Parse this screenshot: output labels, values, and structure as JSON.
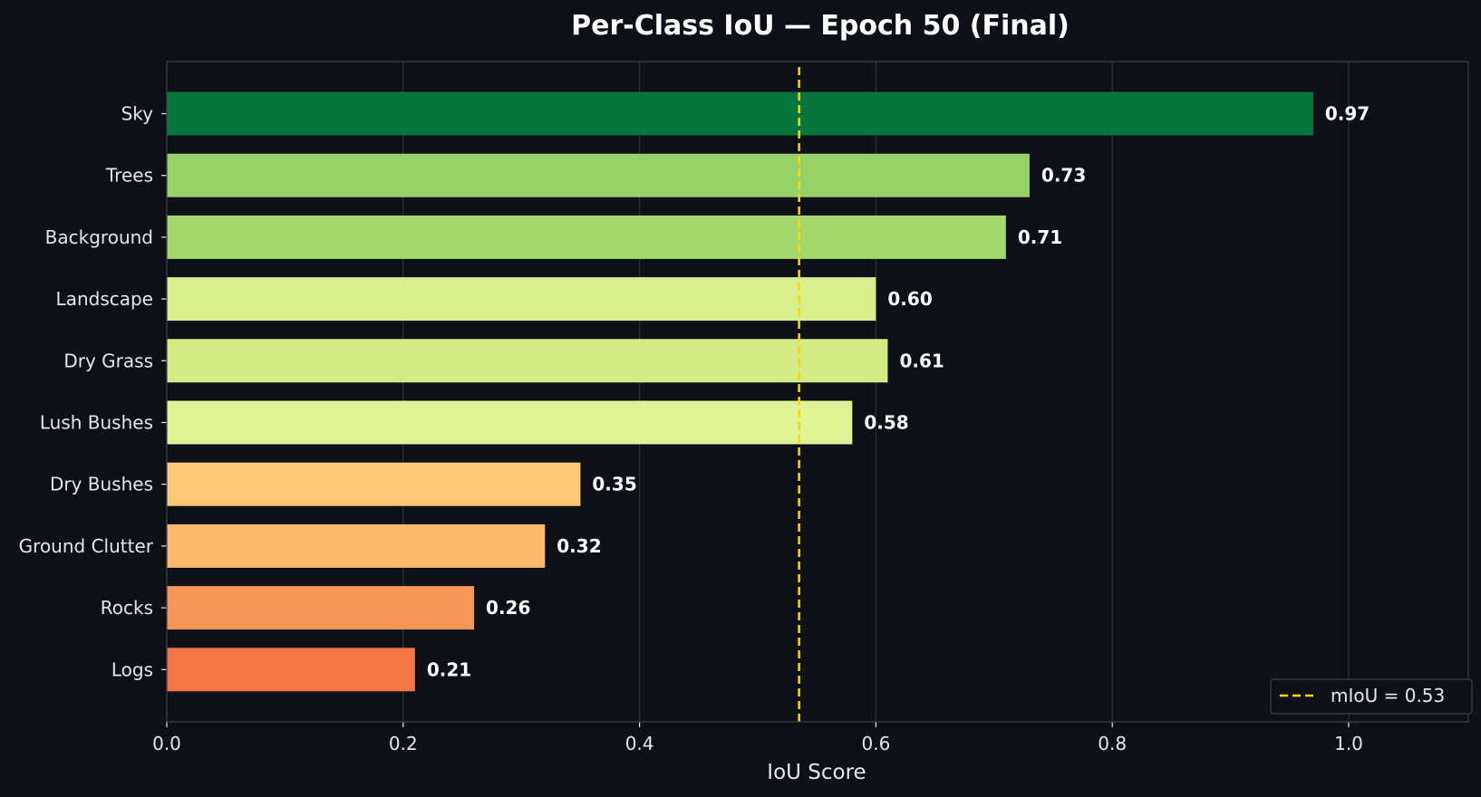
{
  "chart_data": {
    "type": "bar",
    "orientation": "horizontal",
    "title": "Per-Class IoU — Epoch 50 (Final)",
    "xlabel": "IoU Score",
    "ylabel": "",
    "xlim": [
      0,
      1.1
    ],
    "xticks": [
      0.0,
      0.2,
      0.4,
      0.6,
      0.8,
      1.0
    ],
    "xtick_labels": [
      "0.0",
      "0.2",
      "0.4",
      "0.6",
      "0.8",
      "1.0"
    ],
    "grid": true,
    "categories": [
      "Sky",
      "Trees",
      "Background",
      "Landscape",
      "Dry Grass",
      "Lush Bushes",
      "Dry Bushes",
      "Ground Clutter",
      "Rocks",
      "Logs"
    ],
    "values": [
      0.97,
      0.73,
      0.71,
      0.6,
      0.61,
      0.58,
      0.35,
      0.32,
      0.26,
      0.21
    ],
    "value_labels": [
      "0.97",
      "0.73",
      "0.71",
      "0.60",
      "0.61",
      "0.58",
      "0.35",
      "0.32",
      "0.26",
      "0.21"
    ],
    "bar_colors": [
      "#06753d",
      "#96d268",
      "#a4d86b",
      "#d8ef8d",
      "#d3ec86",
      "#e0f396",
      "#fec879",
      "#fdb969",
      "#f99657",
      "#f47646"
    ],
    "reference_line": {
      "value": 0.535,
      "label": "mIoU = 0.53",
      "color": "#ffd700",
      "style": "dashed"
    },
    "legend_position": "bottom-right",
    "colors": {
      "background": "#0d1017",
      "axes_edge": "#3a3f48",
      "grid": "#2b3039",
      "text": "#e6e6e6"
    }
  }
}
